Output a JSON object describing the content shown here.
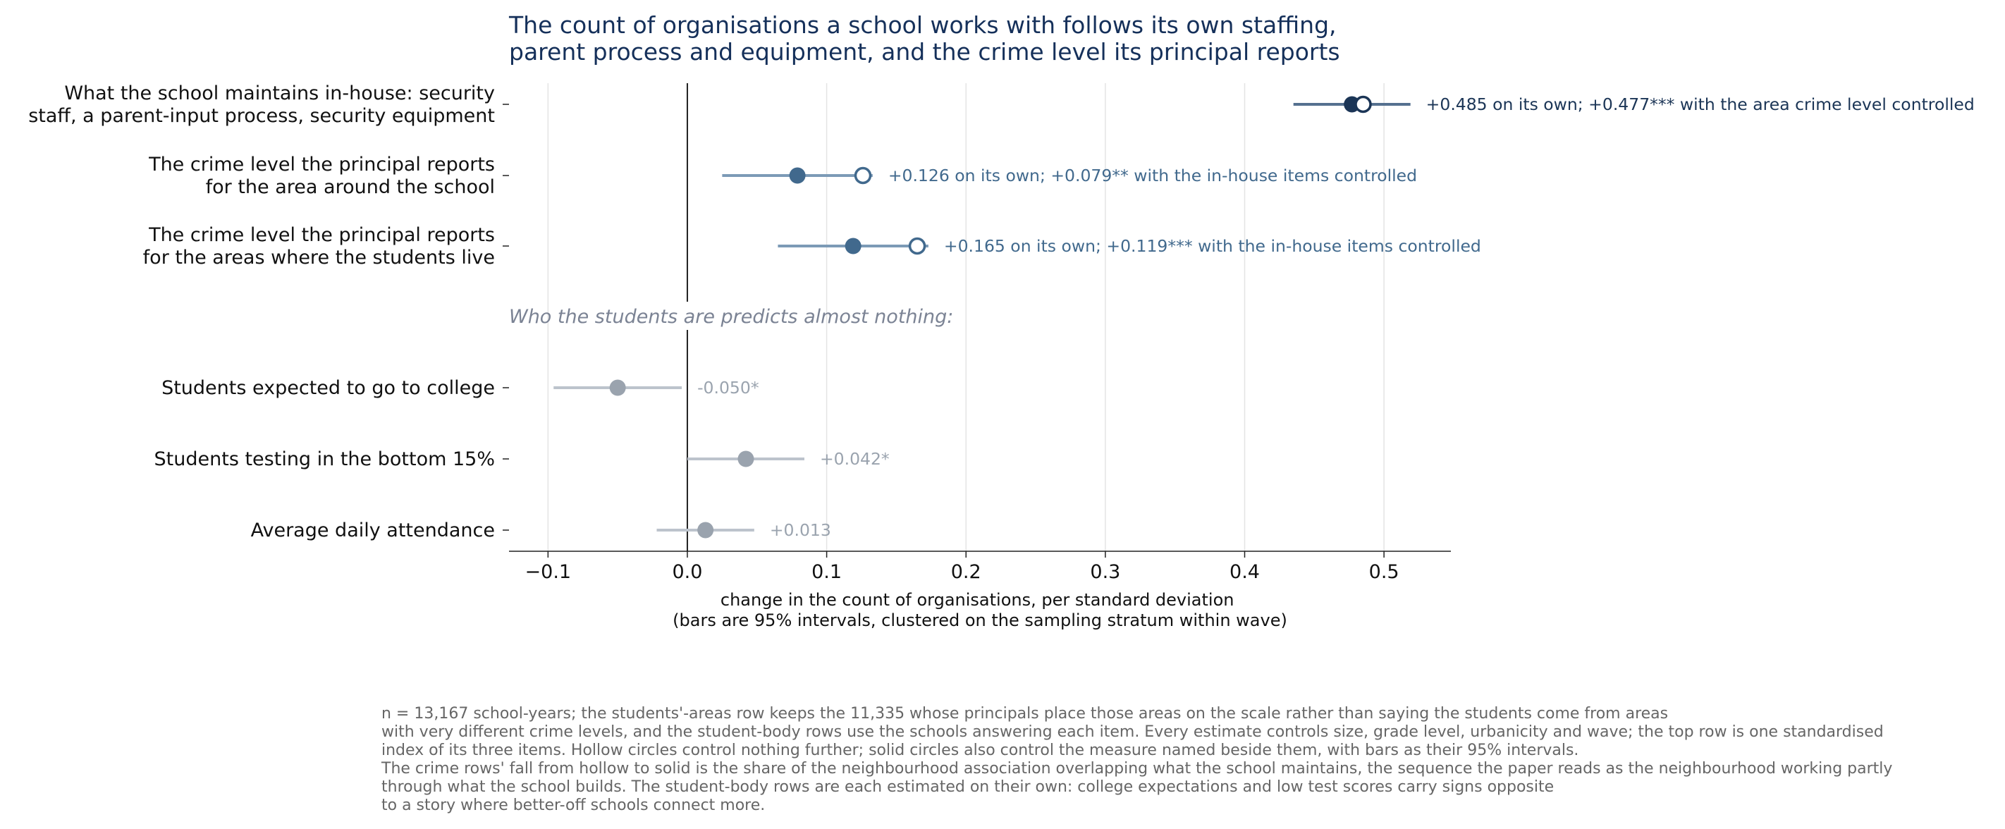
{
  "colors": {
    "top": "#1b3556",
    "crime": "#41698d",
    "student": "#9aa3ae",
    "grid": "#e4e4e4",
    "axis": "#222222"
  },
  "chart_data": {
    "type": "dot-and-interval",
    "title": "The count of organisations a school works with follows its own staffing, parent process and equipment, and the crime level its principal reports",
    "title_lines": [
      "The count of organisations a school works with follows its own staffing,",
      "parent process and equipment, and the crime level its principal reports"
    ],
    "xlabel_lines": [
      "change in the count of organisations, per standard deviation",
      "(bars are 95% intervals, clustered on the sampling stratum within wave)"
    ],
    "xlim": [
      -0.128,
      0.548
    ],
    "xticks": [
      {
        "value": -0.1,
        "label": "−0.1"
      },
      {
        "value": 0.0,
        "label": "0.0"
      },
      {
        "value": 0.1,
        "label": "0.1"
      },
      {
        "value": 0.2,
        "label": "0.2"
      },
      {
        "value": 0.3,
        "label": "0.3"
      },
      {
        "value": 0.4,
        "label": "0.4"
      },
      {
        "value": 0.5,
        "label": "0.5"
      }
    ],
    "grid": "vertical",
    "section_note": "Who the students are predicts almost nothing:",
    "rows": [
      {
        "label_lines": [
          "What the school maintains in-house: security",
          "staff, a parent-input process, security equipment"
        ],
        "group": "top",
        "hollow": 0.485,
        "solid": 0.477,
        "ci": [
          0.435,
          0.519
        ],
        "annotation": "+0.485 on its own; +0.477*** with the area crime level controlled"
      },
      {
        "label_lines": [
          "The crime level the principal reports",
          "for the area around the school"
        ],
        "group": "crime",
        "hollow": 0.126,
        "solid": 0.079,
        "ci": [
          0.025,
          0.133
        ],
        "annotation": "+0.126 on its own; +0.079** with the in-house items controlled"
      },
      {
        "label_lines": [
          "The crime level the principal reports",
          "for the areas where the students live"
        ],
        "group": "crime",
        "hollow": 0.165,
        "solid": 0.119,
        "ci": [
          0.065,
          0.173
        ],
        "annotation": "+0.165 on its own; +0.119*** with the in-house items controlled"
      },
      {
        "label_lines": [
          "Students expected to go to college"
        ],
        "group": "student",
        "solid": -0.05,
        "ci": [
          -0.096,
          -0.004
        ],
        "annotation": "-0.050*"
      },
      {
        "label_lines": [
          "Students testing in the bottom 15%"
        ],
        "group": "student",
        "solid": 0.042,
        "ci": [
          0.0,
          0.084
        ],
        "annotation": "+0.042*"
      },
      {
        "label_lines": [
          "Average daily attendance"
        ],
        "group": "student",
        "solid": 0.013,
        "ci": [
          -0.022,
          0.048
        ],
        "annotation": "+0.013"
      }
    ],
    "footnote_lines": [
      "n = 13,167 school-years; the students'-areas row keeps the 11,335 whose principals place those areas on the scale rather than saying the students come from areas",
      "with very different crime levels, and the student-body rows use the schools answering each item. Every estimate controls size, grade level, urbanicity and wave; the top row is one standardised",
      "index of its three items. Hollow circles control nothing further; solid circles also control the measure named beside them, with bars as their 95% intervals.",
      "The crime rows' fall from hollow to solid is the share of the neighbourhood association overlapping what the school maintains, the sequence the paper reads as the neighbourhood working partly",
      "through what the school builds. The student-body rows are each estimated on their own: college expectations and low test scores carry signs opposite",
      "to a story where better-off schools connect more."
    ]
  }
}
